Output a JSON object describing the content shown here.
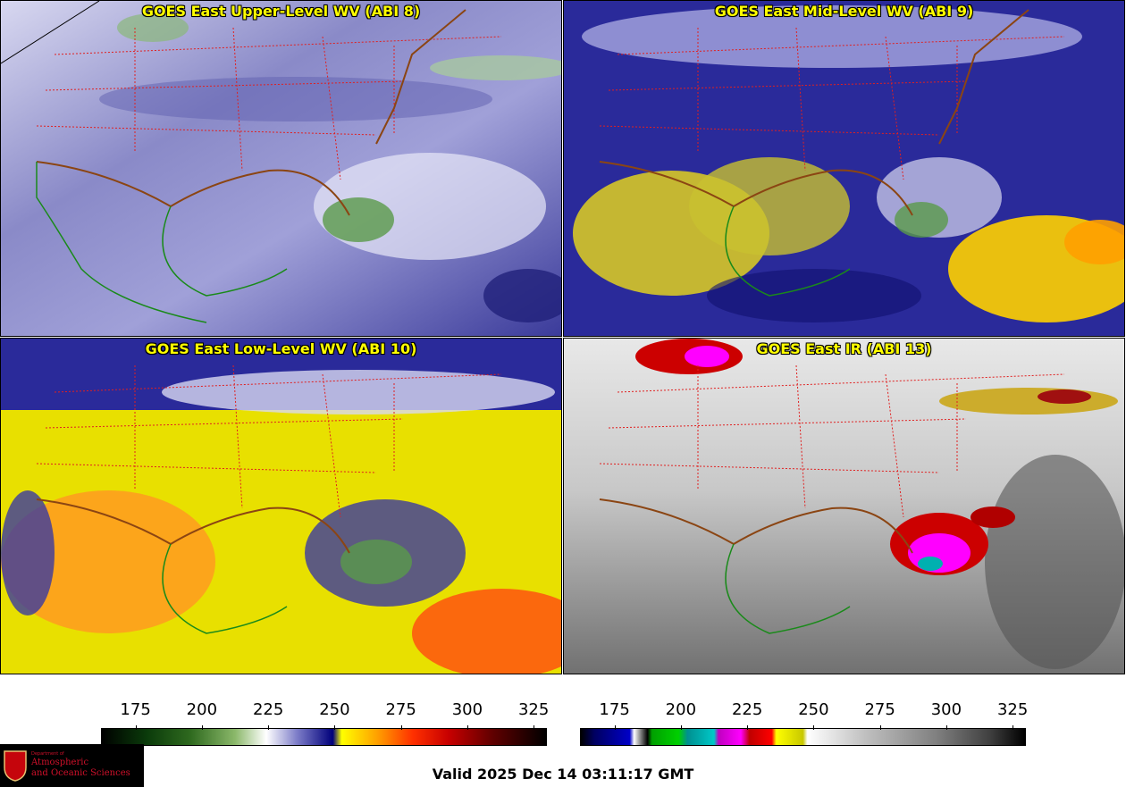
{
  "panels": [
    {
      "title": "GOES East Upper-Level WV (ABI 8)",
      "scheme": "wv_upper"
    },
    {
      "title": "GOES East Mid-Level WV (ABI 9)",
      "scheme": "wv_mid"
    },
    {
      "title": "GOES East Low-Level WV (ABI 10)",
      "scheme": "wv_low"
    },
    {
      "title": "GOES East IR (ABI 13)",
      "scheme": "ir"
    }
  ],
  "colorbars": [
    {
      "ticks": [
        "175",
        "200",
        "225",
        "250",
        "275",
        "300",
        "325"
      ],
      "range": [
        162,
        330
      ],
      "colormap": "water-vapor"
    },
    {
      "ticks": [
        "175",
        "200",
        "225",
        "250",
        "275",
        "300",
        "325"
      ],
      "range": [
        162,
        330
      ],
      "colormap": "infrared"
    }
  ],
  "valid_time": "Valid 2025 Dec 14 03:11:17 GMT",
  "logo": {
    "department": "Department of",
    "line1": "Atmospheric",
    "line2": "and Oceanic Sciences",
    "crest_letter": "W"
  },
  "colors": {
    "title_text": "#ffff00",
    "state_borders": "#e02020",
    "coastlines_country": "#8b4513",
    "coastline_tropics": "#1a8a1a",
    "logo_red": "#d0102a"
  }
}
